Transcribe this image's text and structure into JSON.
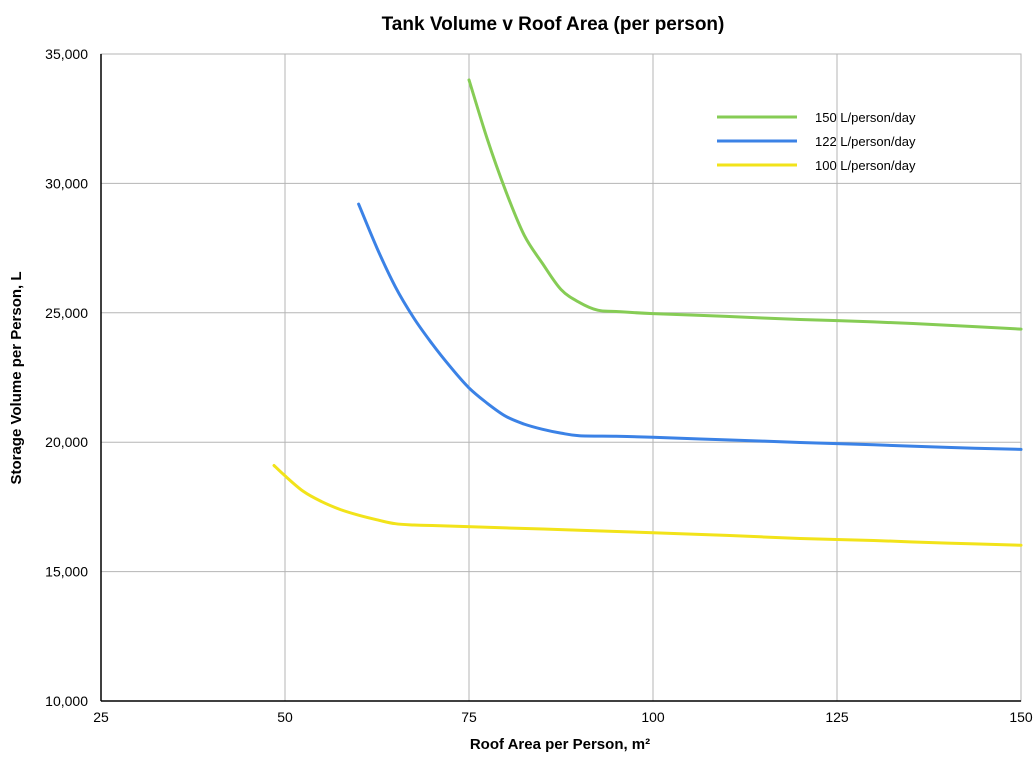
{
  "chart_data": {
    "type": "line",
    "title": "Tank Volume v Roof Area (per person)",
    "xlabel": "Roof Area per Person, m²",
    "ylabel": "Storage Volume per Person, L",
    "xlim": [
      25,
      150
    ],
    "ylim": [
      10000,
      35000
    ],
    "x_ticks": [
      25,
      50,
      75,
      100,
      125,
      150
    ],
    "y_ticks": [
      10000,
      15000,
      20000,
      25000,
      30000,
      35000
    ],
    "x_tick_labels": [
      "25",
      "50",
      "75",
      "100",
      "125",
      "150"
    ],
    "y_tick_labels": [
      "10,000",
      "15,000",
      "20,000",
      "25,000",
      "30,000",
      "35,000"
    ],
    "grid": true,
    "legend_position": "top-right",
    "series": [
      {
        "name": "150 L/person/day",
        "color": "#86cc55",
        "x": [
          75,
          77.5,
          80,
          82.5,
          85,
          87.5,
          90,
          92.5,
          95,
          100,
          110,
          120,
          130,
          140,
          150
        ],
        "y": [
          34000,
          31700,
          29700,
          28000,
          26900,
          25900,
          25400,
          25100,
          25050,
          24970,
          24860,
          24740,
          24650,
          24520,
          24370
        ]
      },
      {
        "name": "122 L/person/day",
        "color": "#3b82e6",
        "x": [
          60,
          62.5,
          65,
          67.5,
          70,
          72.5,
          75,
          77.5,
          80,
          82.5,
          85,
          87.5,
          90,
          95,
          100,
          110,
          120,
          130,
          140,
          150
        ],
        "y": [
          29200,
          27500,
          26000,
          24800,
          23800,
          22900,
          22100,
          21500,
          21000,
          20700,
          20500,
          20350,
          20250,
          20230,
          20190,
          20090,
          19990,
          19900,
          19800,
          19720
        ]
      },
      {
        "name": "100 L/person/day",
        "color": "#f2e31a",
        "x": [
          48.5,
          50,
          52.5,
          55,
          57.5,
          60,
          62.5,
          65,
          67.5,
          70,
          80,
          90,
          100,
          110,
          120,
          130,
          140,
          150
        ],
        "y": [
          19100,
          18700,
          18100,
          17700,
          17400,
          17180,
          17000,
          16850,
          16800,
          16780,
          16690,
          16600,
          16500,
          16400,
          16280,
          16200,
          16100,
          16020
        ]
      }
    ]
  }
}
